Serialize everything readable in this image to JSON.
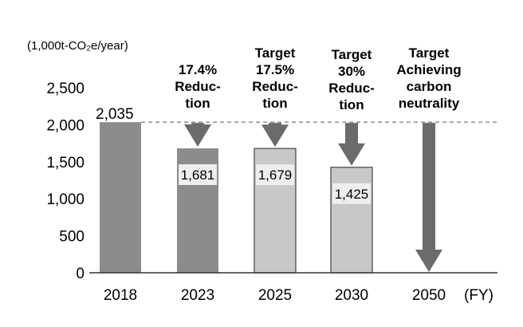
{
  "chart_data": {
    "type": "bar",
    "unit_label": "(1,000t-CO₂e/year)",
    "x_unit": "(FY)",
    "categories": [
      "2018",
      "2023",
      "2025",
      "2030",
      "2050"
    ],
    "values": [
      2035,
      1681,
      1679,
      1425,
      0
    ],
    "value_labels": [
      "2,035",
      "1,681",
      "1,679",
      "1,425",
      ""
    ],
    "bar_colors": [
      "#8c8c8c",
      "#8c8c8c",
      "#c8c8c8",
      "#c8c8c8",
      null
    ],
    "annotations": [
      "",
      "17.4%\nReduc-\ntion",
      "Target\n17.5%\nReduc-\ntion",
      "Target\n30%\nReduc-\ntion",
      "Target\nAchieving\ncarbon\nneutrality"
    ],
    "reference_line": 2035,
    "y_ticks": [
      "0",
      "500",
      "1,000",
      "1,500",
      "2,000",
      "2,500"
    ],
    "ylim": [
      0,
      2500
    ],
    "arrow_color": "#6b6b6b"
  }
}
